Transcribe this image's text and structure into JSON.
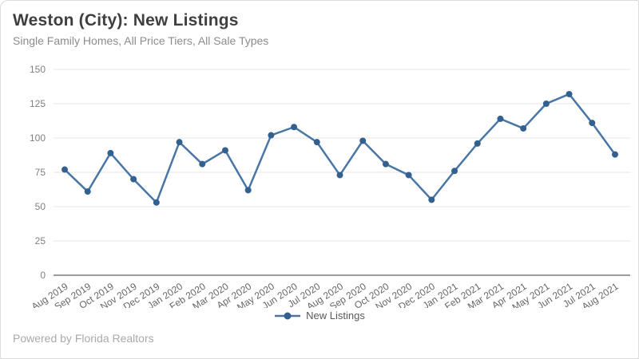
{
  "header": {
    "title": "Weston (City): New Listings",
    "subtitle": "Single Family Homes, All Price Tiers, All Sale Types"
  },
  "chart_data": {
    "type": "line",
    "title": "Weston (City): New Listings",
    "subtitle": "Single Family Homes, All Price Tiers, All Sale Types",
    "categories": [
      "Aug 2019",
      "Sep 2019",
      "Oct 2019",
      "Nov 2019",
      "Dec 2019",
      "Jan 2020",
      "Feb 2020",
      "Mar 2020",
      "Apr 2020",
      "May 2020",
      "Jun 2020",
      "Jul 2020",
      "Aug 2020",
      "Sep 2020",
      "Oct 2020",
      "Nov 2020",
      "Dec 2020",
      "Jan 2021",
      "Feb 2021",
      "Mar 2021",
      "Apr 2021",
      "May 2021",
      "Jun 2021",
      "Jul 2021",
      "Aug 2021"
    ],
    "series": [
      {
        "name": "New Listings",
        "values": [
          77,
          61,
          89,
          70,
          53,
          97,
          81,
          91,
          62,
          102,
          108,
          97,
          73,
          98,
          81,
          73,
          55,
          76,
          96,
          114,
          107,
          125,
          132,
          111,
          88
        ]
      }
    ],
    "ylim": [
      0,
      150
    ],
    "yticks": [
      0,
      25,
      50,
      75,
      100,
      125,
      150
    ],
    "grid": true,
    "xlabel": "",
    "ylabel": "",
    "legend_position": "bottom",
    "colors": {
      "line": "#4876a6",
      "marker": "#33618f",
      "grid": "#e6e6e6",
      "axis": "#9b9b9b"
    }
  },
  "legend": {
    "label": "New Listings"
  },
  "footer": {
    "text": "Powered by Florida Realtors"
  }
}
